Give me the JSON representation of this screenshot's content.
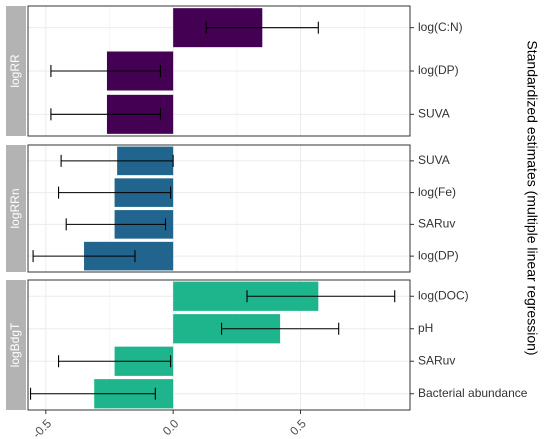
{
  "chart_data": {
    "type": "bar",
    "orientation": "horizontal",
    "ylabel": "Standardized estimates (multiple linear regression)",
    "xlim": [
      -0.57,
      0.93
    ],
    "x_ticks": [
      -0.5,
      0.0,
      0.5
    ],
    "x_tick_labels": [
      "-0.5",
      "0.0",
      "0.5"
    ],
    "grid": true,
    "facets": [
      {
        "name": "logRR",
        "color": "#440154",
        "bars": [
          {
            "label": "log(C:N)",
            "value": 0.35,
            "err_low": 0.13,
            "err_high": 0.57
          },
          {
            "label": "log(DP)",
            "value": -0.26,
            "err_low": -0.48,
            "err_high": -0.05
          },
          {
            "label": "SUVA",
            "value": -0.26,
            "err_low": -0.48,
            "err_high": -0.05
          }
        ]
      },
      {
        "name": "logRRn",
        "color": "#21658e",
        "bars": [
          {
            "label": "SUVA",
            "value": -0.22,
            "err_low": -0.44,
            "err_high": 0.0
          },
          {
            "label": "log(Fe)",
            "value": -0.23,
            "err_low": -0.45,
            "err_high": -0.01
          },
          {
            "label": "SARuv",
            "value": -0.23,
            "err_low": -0.42,
            "err_high": -0.03
          },
          {
            "label": "log(DP)",
            "value": -0.35,
            "err_low": -0.55,
            "err_high": -0.15
          }
        ]
      },
      {
        "name": "logBdgT",
        "color": "#1fb58c",
        "bars": [
          {
            "label": "log(DOC)",
            "value": 0.57,
            "err_low": 0.29,
            "err_high": 0.87
          },
          {
            "label": "pH",
            "value": 0.42,
            "err_low": 0.19,
            "err_high": 0.65
          },
          {
            "label": "SARuv",
            "value": -0.23,
            "err_low": -0.45,
            "err_high": -0.01
          },
          {
            "label": "Bacterial abundance",
            "value": -0.31,
            "err_low": -0.56,
            "err_high": -0.07
          }
        ]
      }
    ]
  }
}
